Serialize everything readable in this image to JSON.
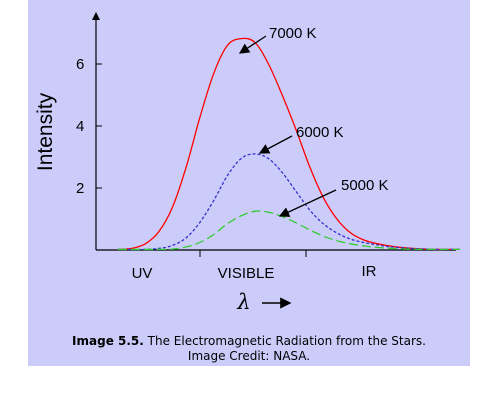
{
  "chart_data": {
    "type": "line",
    "title": "",
    "xlabel": "λ",
    "ylabel": "Intensity",
    "ylim": [
      0,
      7.5
    ],
    "yticks": [
      2,
      4,
      6
    ],
    "x_band_labels": [
      "UV",
      "VISIBLE",
      "IR"
    ],
    "grid": false,
    "series": [
      {
        "name": "7000 K",
        "color": "#ff0000",
        "style": "solid",
        "x": [
          0.0,
          0.04,
          0.08,
          0.12,
          0.16,
          0.2,
          0.24,
          0.28,
          0.32,
          0.36,
          0.4,
          0.44,
          0.48,
          0.52,
          0.56,
          0.6,
          0.64,
          0.68,
          0.72,
          0.76,
          0.8,
          0.84,
          0.88,
          0.92,
          0.96,
          1.0
        ],
        "y": [
          0.0,
          0.05,
          0.2,
          0.6,
          1.4,
          2.7,
          4.3,
          5.7,
          6.6,
          6.82,
          6.7,
          6.0,
          5.0,
          3.9,
          2.7,
          1.7,
          1.0,
          0.55,
          0.32,
          0.2,
          0.12,
          0.07,
          0.04,
          0.02,
          0.01,
          0.0
        ]
      },
      {
        "name": "6000 K",
        "color": "#3333cc",
        "style": "dashed",
        "x": [
          0.0,
          0.08,
          0.12,
          0.16,
          0.2,
          0.24,
          0.28,
          0.32,
          0.36,
          0.4,
          0.44,
          0.48,
          0.52,
          0.56,
          0.6,
          0.64,
          0.68,
          0.72,
          0.76,
          0.8,
          0.84,
          0.88,
          0.92,
          0.96,
          1.0
        ],
        "y": [
          0.0,
          0.0,
          0.05,
          0.15,
          0.4,
          0.9,
          1.6,
          2.4,
          2.95,
          3.1,
          2.95,
          2.5,
          1.9,
          1.3,
          0.85,
          0.55,
          0.35,
          0.24,
          0.16,
          0.1,
          0.06,
          0.04,
          0.02,
          0.01,
          0.0
        ]
      },
      {
        "name": "5000 K",
        "color": "#33cc33",
        "style": "long-dashed",
        "x": [
          0.0,
          0.12,
          0.16,
          0.2,
          0.24,
          0.28,
          0.32,
          0.36,
          0.4,
          0.44,
          0.48,
          0.52,
          0.56,
          0.6,
          0.64,
          0.68,
          0.72,
          0.76,
          0.8,
          0.84,
          0.88,
          0.92,
          0.96,
          1.0
        ],
        "y": [
          0.0,
          0.0,
          0.03,
          0.1,
          0.25,
          0.5,
          0.85,
          1.1,
          1.25,
          1.22,
          1.08,
          0.88,
          0.65,
          0.45,
          0.3,
          0.2,
          0.13,
          0.08,
          0.05,
          0.03,
          0.02,
          0.01,
          0.0,
          0.0
        ]
      }
    ],
    "annotations": [
      "7000 K",
      "6000 K",
      "5000 K"
    ]
  },
  "caption": {
    "bold": "Image 5.5.",
    "text": " The Electromagnetic Radiation from the Stars.",
    "line2": "Image Credit: NASA."
  }
}
